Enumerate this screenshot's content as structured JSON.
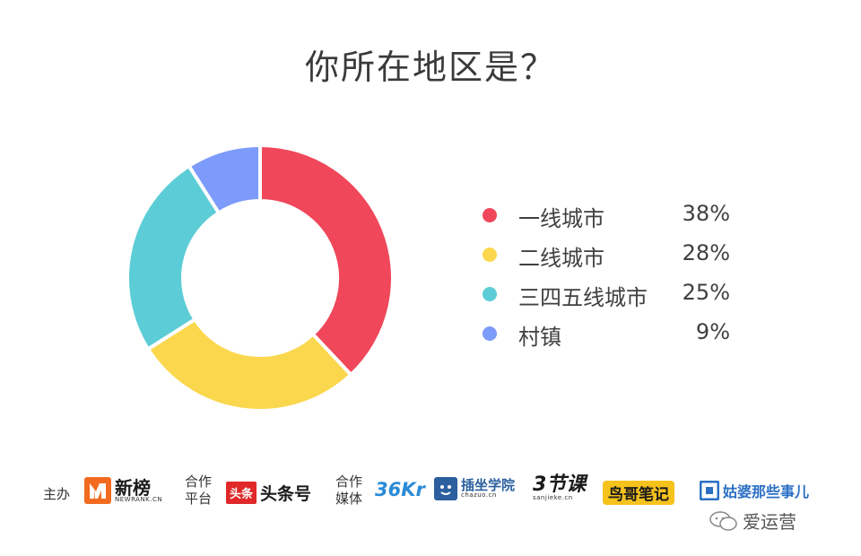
{
  "chart_data": {
    "type": "pie",
    "title": "你所在地区是？",
    "donut": true,
    "categories": [
      "一线城市",
      "二线城市",
      "三四五线城市",
      "村镇"
    ],
    "values": [
      38,
      28,
      25,
      9
    ],
    "value_labels": [
      "38%",
      "28%",
      "25%",
      "9%"
    ],
    "colors": [
      "#f0475a",
      "#fad74d",
      "#5ccdd6",
      "#7c9bfa"
    ],
    "legend_position": "right"
  },
  "footer": {
    "host_label": "主办",
    "host_logo": {
      "name": "新榜",
      "sub": "NEWRANK.CN"
    },
    "platform_label_1": "合作",
    "platform_label_2": "平台",
    "platform_logo": {
      "badge": "头条",
      "name": "头条号"
    },
    "media_label_1": "合作",
    "media_label_2": "媒体",
    "media_logos": [
      {
        "name": "36Kr"
      },
      {
        "name": "插坐学院",
        "sub": "chazuo.cn"
      },
      {
        "name": "3节课",
        "sub": "sanjieke.cn"
      },
      {
        "name": "鸟哥笔记"
      },
      {
        "name": "姑婆那些事儿"
      }
    ],
    "watermark": "爱运营"
  }
}
